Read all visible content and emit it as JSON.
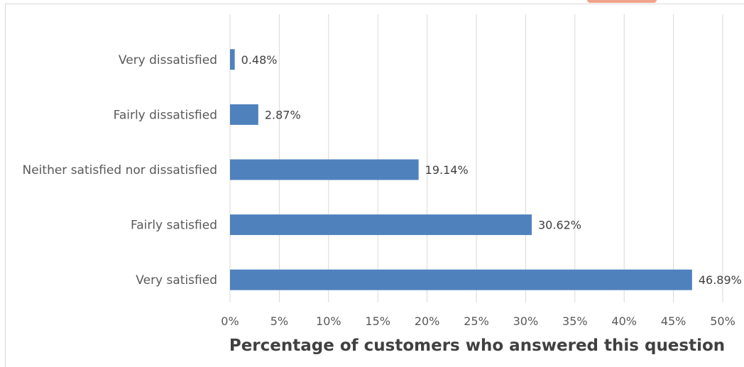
{
  "chart_data": {
    "type": "bar",
    "orientation": "horizontal",
    "categories": [
      "Very dissatisfied",
      "Fairly dissatisfied",
      "Neither satisfied nor dissatisfied",
      "Fairly satisfied",
      "Very satisfied"
    ],
    "values": [
      0.48,
      2.87,
      19.14,
      30.62,
      46.89
    ],
    "value_labels": [
      "0.48%",
      "2.87%",
      "19.14%",
      "30.62%",
      "46.89%"
    ],
    "title": "",
    "xlabel": "Percentage of customers who answered this question",
    "ylabel": "",
    "xlim": [
      0,
      50
    ],
    "x_ticks": [
      0,
      5,
      10,
      15,
      20,
      25,
      30,
      35,
      40,
      45,
      50
    ],
    "x_tick_labels": [
      "0%",
      "5%",
      "10%",
      "15%",
      "20%",
      "25%",
      "30%",
      "35%",
      "40%",
      "45%",
      "50%"
    ],
    "grid": "vertical",
    "legend": "none",
    "bar_color": "#4f81bd",
    "grid_color": "#d9d9d9",
    "text_color": "#595959",
    "axis_title_color": "#404040"
  }
}
